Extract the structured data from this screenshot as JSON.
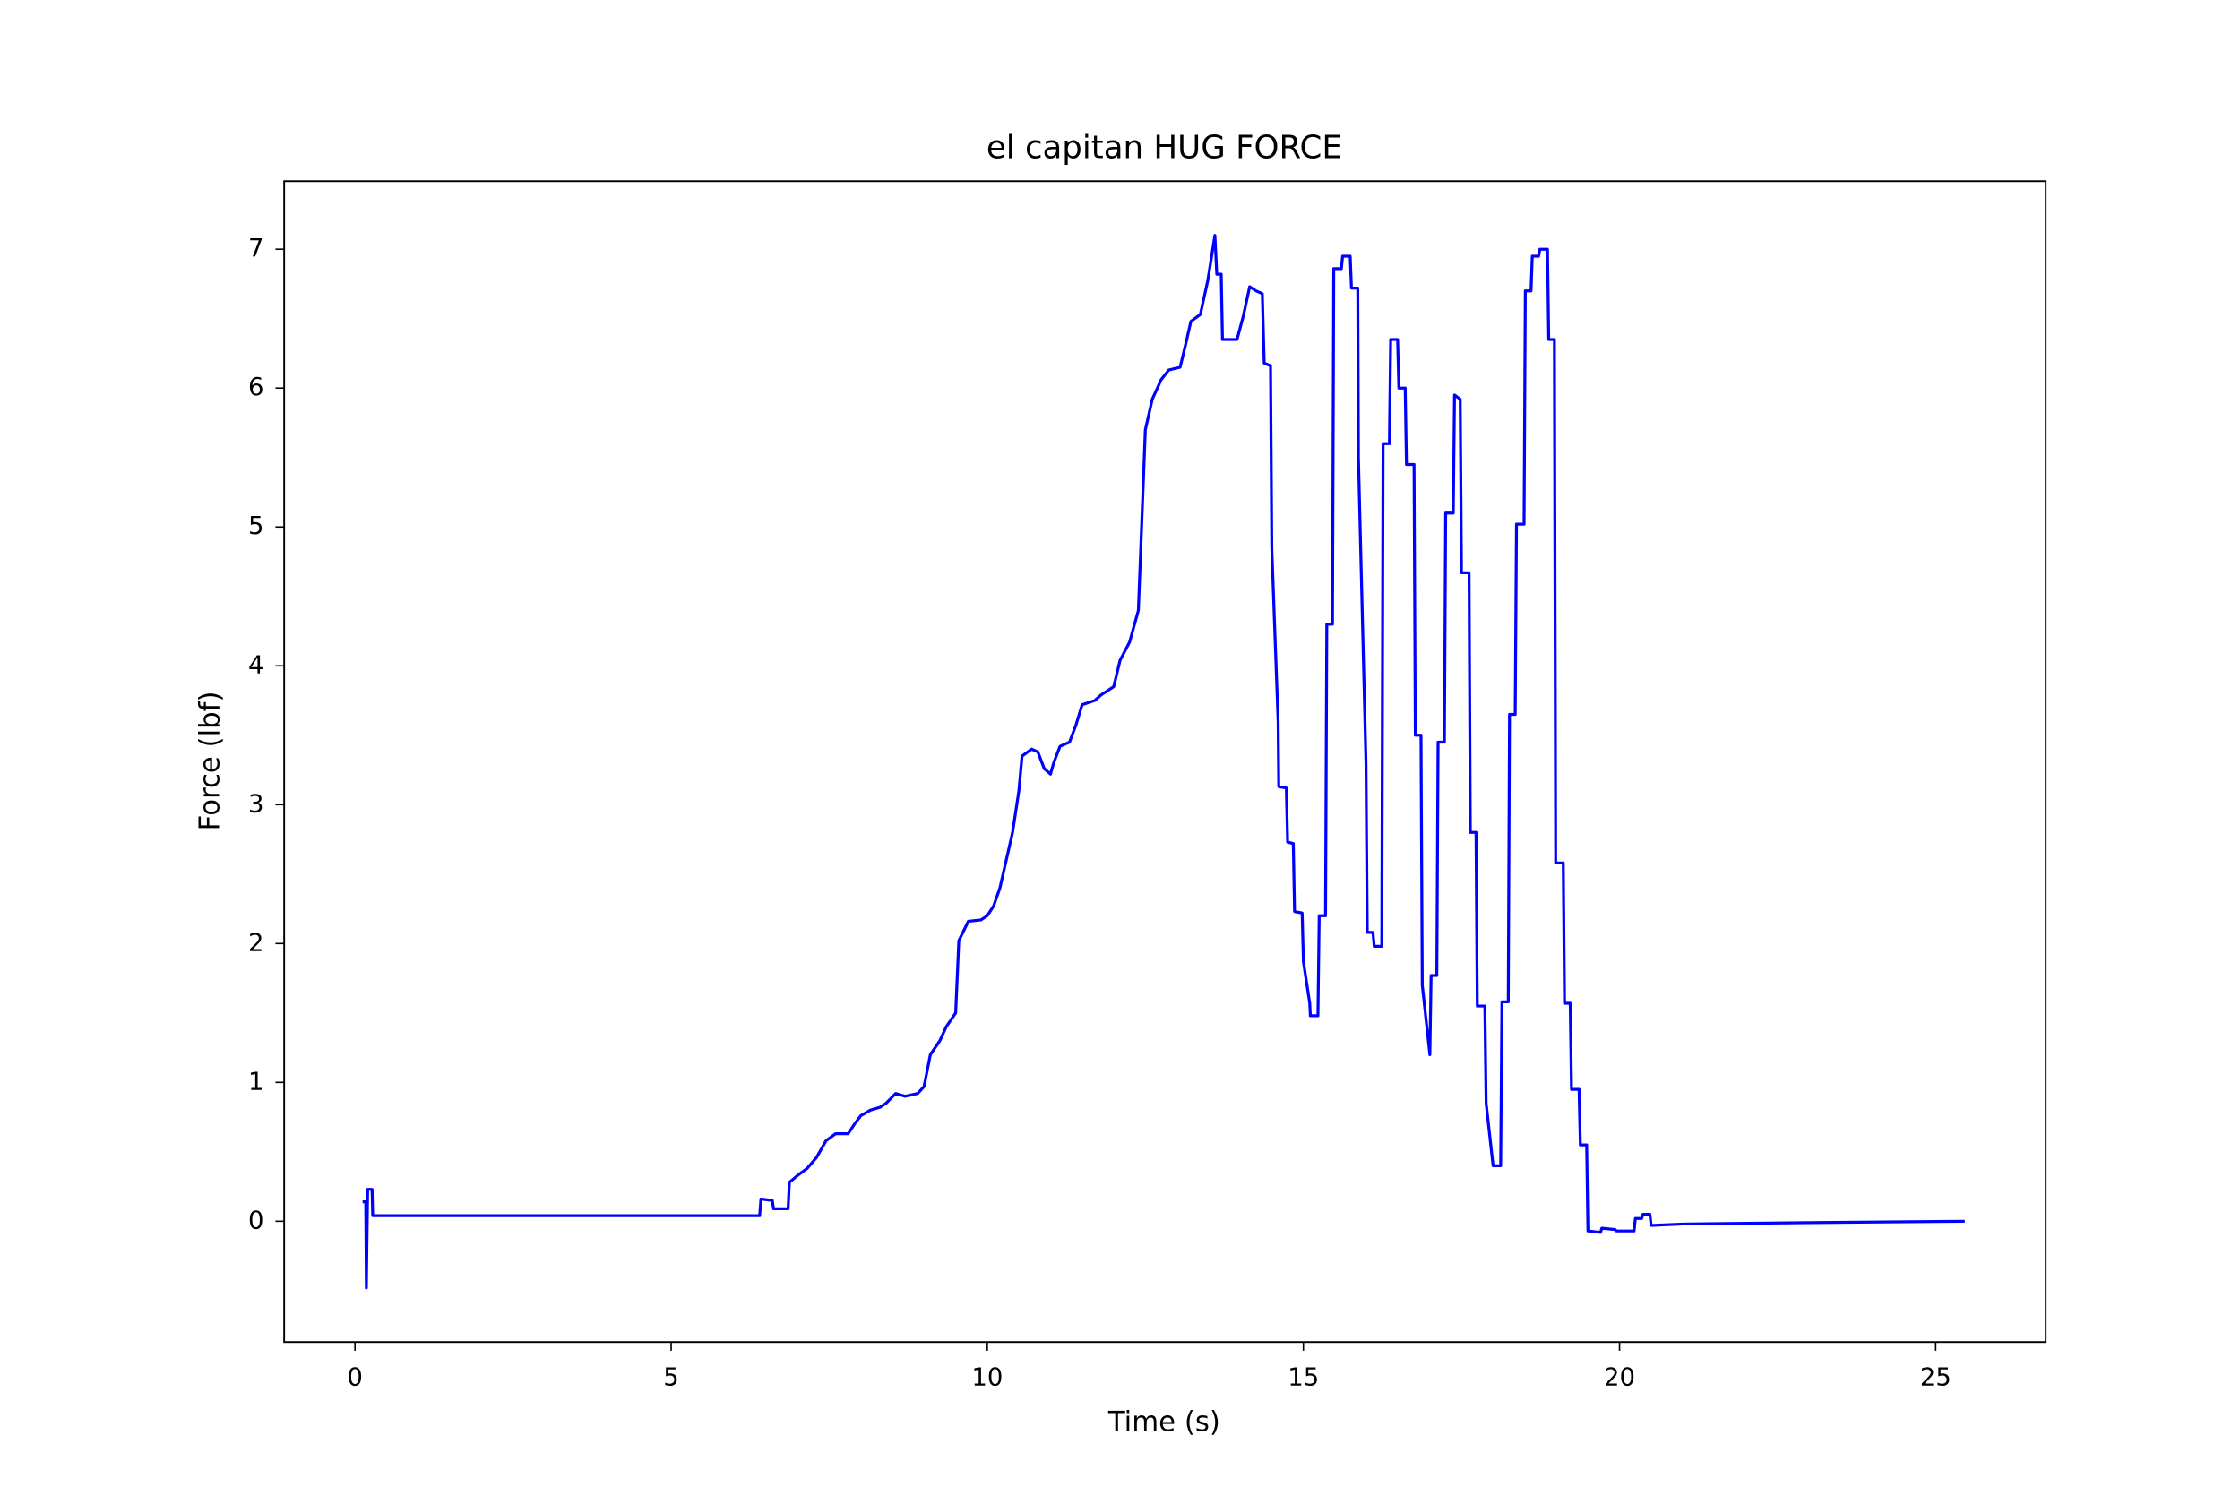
{
  "chart_data": {
    "type": "line",
    "title": "el capitan HUG FORCE",
    "x_label": "Time (s)",
    "y_label": "Force (lbf)",
    "color": "#0000ff",
    "x": [
      0.12,
      0.17,
      0.18,
      0.2,
      0.27,
      0.28,
      3.0,
      6.4,
      6.42,
      6.6,
      6.62,
      6.85,
      6.87,
      7.0,
      7.15,
      7.3,
      7.45,
      7.6,
      7.8,
      7.9,
      8.0,
      8.15,
      8.3,
      8.4,
      8.55,
      8.7,
      8.9,
      9.0,
      9.1,
      9.25,
      9.35,
      9.5,
      9.55,
      9.7,
      9.9,
      10.0,
      10.1,
      10.2,
      10.3,
      10.4,
      10.5,
      10.55,
      10.7,
      10.8,
      10.9,
      11.0,
      11.05,
      11.15,
      11.3,
      11.4,
      11.5,
      11.7,
      11.8,
      11.9,
      12.0,
      12.1,
      12.25,
      12.39,
      12.5,
      12.61,
      12.75,
      12.87,
      13.05,
      13.14,
      13.22,
      13.37,
      13.49,
      13.6,
      13.63,
      13.7,
      13.72,
      13.95,
      14.05,
      14.15,
      14.25,
      14.35,
      14.38,
      14.48,
      14.5,
      14.6,
      14.61,
      14.73,
      14.75,
      14.84,
      14.86,
      14.98,
      15.0,
      15.1,
      15.11,
      15.23,
      15.25,
      15.35,
      15.37,
      15.46,
      15.48,
      15.6,
      15.62,
      15.74,
      15.76,
      15.86,
      15.87,
      15.99,
      16.01,
      16.1,
      16.12,
      16.24,
      16.26,
      16.36,
      16.38,
      16.49,
      16.51,
      16.61,
      16.63,
      16.75,
      16.77,
      16.86,
      16.88,
      17.0,
      17.02,
      17.11,
      17.13,
      17.23,
      17.25,
      17.37,
      17.39,
      17.48,
      17.5,
      17.62,
      17.64,
      17.73,
      17.75,
      17.87,
      17.89,
      18.0,
      18.12,
      18.14,
      18.24,
      18.26,
      18.35,
      18.37,
      18.49,
      18.51,
      18.6,
      18.62,
      18.72,
      18.74,
      18.86,
      18.88,
      18.97,
      18.99,
      19.11,
      19.13,
      19.22,
      19.24,
      19.36,
      19.38,
      19.48,
      19.5,
      19.7,
      19.72,
      19.93,
      19.95,
      20.23,
      20.25,
      20.35,
      20.37,
      20.48,
      20.5,
      21.0,
      23.0,
      25.46
    ],
    "values": [
      0.14,
      0.14,
      -0.48,
      0.23,
      0.23,
      0.04,
      0.04,
      0.04,
      0.16,
      0.15,
      0.09,
      0.09,
      0.28,
      0.33,
      0.38,
      0.46,
      0.58,
      0.63,
      0.63,
      0.7,
      0.76,
      0.8,
      0.82,
      0.85,
      0.92,
      0.9,
      0.92,
      0.97,
      1.2,
      1.3,
      1.4,
      1.5,
      2.02,
      2.16,
      2.17,
      2.2,
      2.27,
      2.4,
      2.6,
      2.8,
      3.1,
      3.35,
      3.4,
      3.38,
      3.26,
      3.22,
      3.3,
      3.42,
      3.45,
      3.57,
      3.72,
      3.75,
      3.79,
      3.82,
      3.85,
      4.04,
      4.17,
      4.4,
      5.7,
      5.92,
      6.06,
      6.13,
      6.15,
      6.32,
      6.48,
      6.53,
      6.78,
      7.1,
      6.82,
      6.82,
      6.35,
      6.35,
      6.52,
      6.73,
      6.7,
      6.68,
      6.18,
      6.16,
      4.85,
      3.6,
      3.13,
      3.12,
      2.73,
      2.72,
      2.23,
      2.22,
      1.87,
      1.57,
      1.48,
      1.48,
      2.2,
      2.2,
      4.3,
      4.3,
      6.86,
      6.86,
      6.95,
      6.95,
      6.72,
      6.72,
      5.5,
      3.3,
      2.08,
      2.08,
      1.98,
      1.98,
      5.6,
      5.6,
      6.35,
      6.35,
      6.0,
      6.0,
      5.45,
      5.45,
      3.5,
      3.5,
      1.7,
      1.2,
      1.77,
      1.77,
      3.45,
      3.45,
      5.1,
      5.1,
      5.95,
      5.92,
      4.67,
      4.67,
      2.8,
      2.8,
      1.55,
      1.55,
      0.85,
      0.4,
      0.4,
      1.58,
      1.58,
      3.65,
      3.65,
      5.02,
      5.02,
      6.7,
      6.7,
      6.95,
      6.95,
      7.0,
      7.0,
      6.35,
      6.35,
      2.58,
      2.58,
      1.57,
      1.57,
      0.95,
      0.95,
      0.55,
      0.55,
      -0.07,
      -0.08,
      -0.05,
      -0.06,
      -0.07,
      -0.07,
      0.02,
      0.02,
      0.05,
      0.05,
      -0.03,
      -0.02,
      -0.01,
      0.0
    ],
    "xlim": [
      -1.12,
      26.74
    ],
    "ylim": [
      -0.87,
      7.49
    ],
    "xticks": [
      0,
      5,
      10,
      15,
      20,
      25
    ],
    "yticks": [
      0,
      1,
      2,
      3,
      4,
      5,
      6,
      7
    ]
  }
}
